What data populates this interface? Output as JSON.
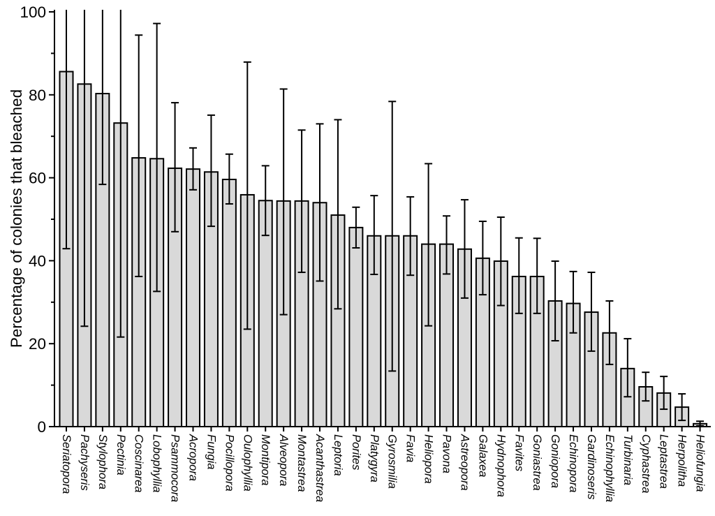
{
  "figure": {
    "background": "#ffffff"
  },
  "chart_data": {
    "type": "bar",
    "title": "",
    "xlabel": "",
    "ylabel": "Percentage of colonies that bleached",
    "ylim": [
      0,
      100
    ],
    "yticks_major": [
      0,
      20,
      40,
      60,
      80,
      100
    ],
    "yticks_minor": [
      10,
      30,
      50,
      70,
      90
    ],
    "grid": false,
    "legend": null,
    "bar_fill_color": "#d9d9d9",
    "bar_edge_color": "#000000",
    "error_bar_color": "#000000",
    "axis_color": "#000000",
    "categories": [
      "Seriatopora",
      "Pachyseris",
      "Stylophora",
      "Pectinia",
      "Coscinarea",
      "Lobophyllia",
      "Psammocora",
      "Acropora",
      "Fungia",
      "Pocillopora",
      "Oulophyllia",
      "Montipora",
      "Alveopora",
      "Montastrea",
      "Acanthastrea",
      "Leptoria",
      "Porites",
      "Platygyra",
      "Gyrosmilia",
      "Favia",
      "Heliopora",
      "Pavona",
      "Astreopora",
      "Galaxea",
      "Hydnophora",
      "Favites",
      "Goniastrea",
      "Goniopora",
      "Echinopora",
      "Gardinoseris",
      "Echinophyllia",
      "Turbinaria",
      "Cyphastrea",
      "Leptastrea",
      "Herpolitha",
      "Heliofungia"
    ],
    "values": [
      85.6,
      82.6,
      80.3,
      73.2,
      64.8,
      64.6,
      62.3,
      62.1,
      61.4,
      59.6,
      55.9,
      54.5,
      54.4,
      54.4,
      54.0,
      51.0,
      48.0,
      46.0,
      46.0,
      46.0,
      44.0,
      44.0,
      42.8,
      40.6,
      39.9,
      36.2,
      36.2,
      30.3,
      29.7,
      27.6,
      22.6,
      14.0,
      9.6,
      8.1,
      4.7,
      0.7
    ],
    "error_low": [
      42.9,
      24.2,
      58.4,
      21.6,
      36.2,
      32.6,
      47.0,
      57.1,
      48.3,
      53.7,
      23.5,
      46.1,
      27.0,
      37.2,
      35.1,
      28.4,
      43.1,
      36.7,
      13.4,
      36.5,
      24.3,
      36.8,
      31.0,
      31.8,
      29.2,
      27.3,
      27.3,
      20.7,
      22.6,
      18.2,
      15.0,
      7.2,
      6.2,
      4.2,
      1.5,
      0.2
    ],
    "error_high": [
      null,
      null,
      null,
      null,
      94.4,
      97.2,
      78.1,
      67.2,
      75.1,
      65.7,
      87.9,
      62.9,
      81.4,
      71.5,
      73.0,
      74.0,
      52.9,
      55.7,
      78.4,
      55.4,
      63.4,
      50.8,
      54.7,
      49.5,
      50.5,
      45.5,
      45.4,
      39.9,
      37.4,
      37.2,
      30.3,
      21.2,
      13.1,
      12.1,
      7.9,
      1.3
    ],
    "error_high_clipped": [
      true,
      true,
      true,
      true,
      false,
      false,
      false,
      false,
      false,
      false,
      false,
      false,
      false,
      false,
      false,
      false,
      false,
      false,
      false,
      false,
      false,
      false,
      false,
      false,
      false,
      false,
      false,
      false,
      false,
      false,
      false,
      false,
      false,
      false,
      false,
      false
    ]
  }
}
